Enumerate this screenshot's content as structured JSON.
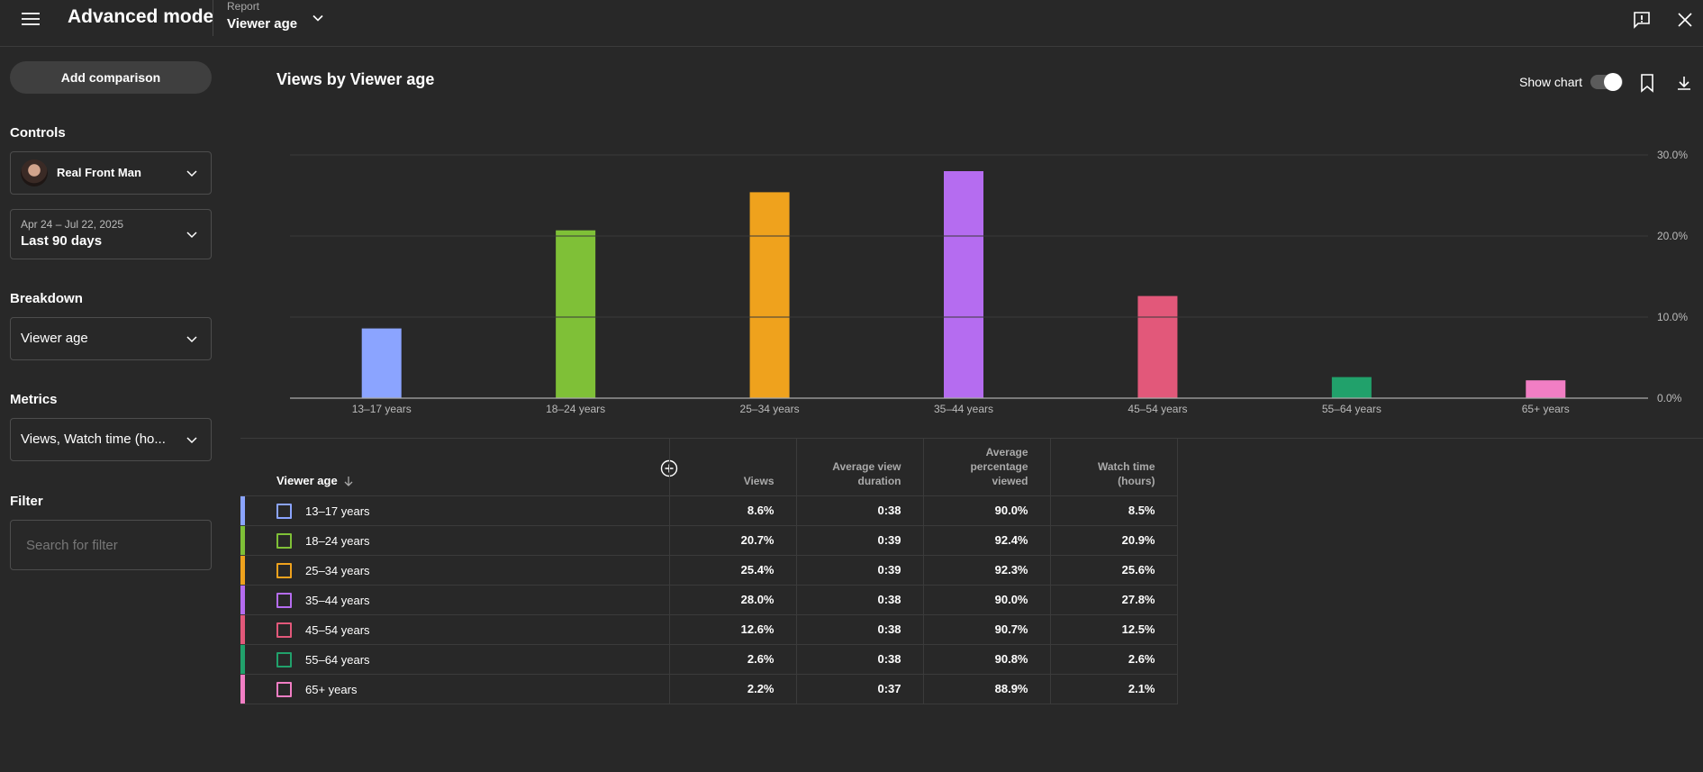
{
  "topbar": {
    "title": "Advanced mode",
    "report_label": "Report",
    "report_value": "Viewer age"
  },
  "sidebar": {
    "add_comparison": "Add comparison",
    "controls_label": "Controls",
    "channel_name": "Real Front Man",
    "date_range": "Apr 24 – Jul 22, 2025",
    "date_preset": "Last 90 days",
    "breakdown_label": "Breakdown",
    "breakdown_value": "Viewer age",
    "metrics_label": "Metrics",
    "metrics_value": "Views, Watch time (ho...",
    "filter_label": "Filter",
    "filter_placeholder": "Search for filter"
  },
  "main": {
    "chart_title": "Views by Viewer age",
    "show_chart_label": "Show chart",
    "show_chart_on": true
  },
  "chart_data": {
    "type": "bar",
    "title": "Views by Viewer age",
    "categories": [
      "13–17 years",
      "18–24 years",
      "25–34 years",
      "35–44 years",
      "45–54 years",
      "55–64 years",
      "65+ years"
    ],
    "values": [
      8.6,
      20.7,
      25.4,
      28.0,
      12.6,
      2.6,
      2.2
    ],
    "colors": [
      "#8ba4ff",
      "#7fc037",
      "#efa21d",
      "#b56cf0",
      "#e2587a",
      "#21a16b",
      "#f17ec4"
    ],
    "ylim": [
      0,
      30
    ],
    "yticks": [
      "0.0%",
      "10.0%",
      "20.0%",
      "30.0%"
    ],
    "ytick_values": [
      0,
      10,
      20,
      30
    ],
    "grid": true,
    "y_axis_side": "right"
  },
  "table": {
    "headers": [
      "Viewer age",
      "Views",
      "Average view duration",
      "Average percentage viewed",
      "Watch time (hours)"
    ],
    "rows": [
      {
        "label": "13–17 years",
        "color": "#8ba4ff",
        "views": "8.6%",
        "avg_duration": "0:38",
        "avg_pct": "90.0%",
        "watch_time": "8.5%"
      },
      {
        "label": "18–24 years",
        "color": "#7fc037",
        "views": "20.7%",
        "avg_duration": "0:39",
        "avg_pct": "92.4%",
        "watch_time": "20.9%"
      },
      {
        "label": "25–34 years",
        "color": "#efa21d",
        "views": "25.4%",
        "avg_duration": "0:39",
        "avg_pct": "92.3%",
        "watch_time": "25.6%"
      },
      {
        "label": "35–44 years",
        "color": "#b56cf0",
        "views": "28.0%",
        "avg_duration": "0:38",
        "avg_pct": "90.0%",
        "watch_time": "27.8%"
      },
      {
        "label": "45–54 years",
        "color": "#e2587a",
        "views": "12.6%",
        "avg_duration": "0:38",
        "avg_pct": "90.7%",
        "watch_time": "12.5%"
      },
      {
        "label": "55–64 years",
        "color": "#21a16b",
        "views": "2.6%",
        "avg_duration": "0:38",
        "avg_pct": "90.8%",
        "watch_time": "2.6%"
      },
      {
        "label": "65+ years",
        "color": "#f17ec4",
        "views": "2.2%",
        "avg_duration": "0:37",
        "avg_pct": "88.9%",
        "watch_time": "2.1%"
      }
    ]
  }
}
